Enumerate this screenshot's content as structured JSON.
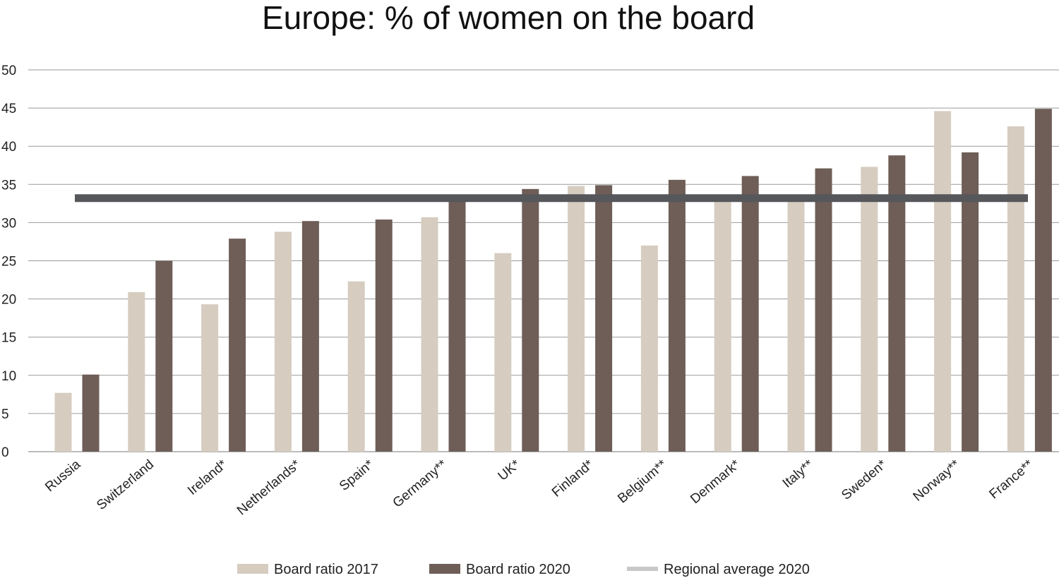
{
  "chart_data": {
    "type": "bar",
    "title": "Europe: % of women on the board",
    "xlabel": "",
    "ylabel": "",
    "ylim": [
      0,
      50
    ],
    "yticks": [
      0,
      5,
      10,
      15,
      20,
      25,
      30,
      35,
      40,
      45,
      50
    ],
    "grid": true,
    "legend_position": "bottom",
    "categories": [
      "Russia",
      "Switzerland",
      "Ireland*",
      "Netherlands*",
      "Spain*",
      "Germany**",
      "UK*",
      "Finland*",
      "Belgium**",
      "Denmark*",
      "Italy**",
      "Sweden*",
      "Norway**",
      "France**"
    ],
    "series": [
      {
        "name": "Board ratio 2017",
        "color": "#d6ccc0",
        "values": [
          7.7,
          20.9,
          19.3,
          28.8,
          22.3,
          30.7,
          26.0,
          34.8,
          27.0,
          32.8,
          32.9,
          37.3,
          44.6,
          42.6
        ]
      },
      {
        "name": "Board ratio 2020",
        "color": "#6e5e57",
        "values": [
          10.1,
          25.0,
          27.9,
          30.2,
          30.4,
          33.1,
          34.4,
          34.9,
          35.6,
          36.1,
          37.1,
          38.8,
          39.2,
          44.9
        ]
      }
    ],
    "reference_line": {
      "name": "Regional average 2020",
      "value": 33.2,
      "color": "#55575a",
      "legend_color": "#c8c8c8"
    }
  }
}
